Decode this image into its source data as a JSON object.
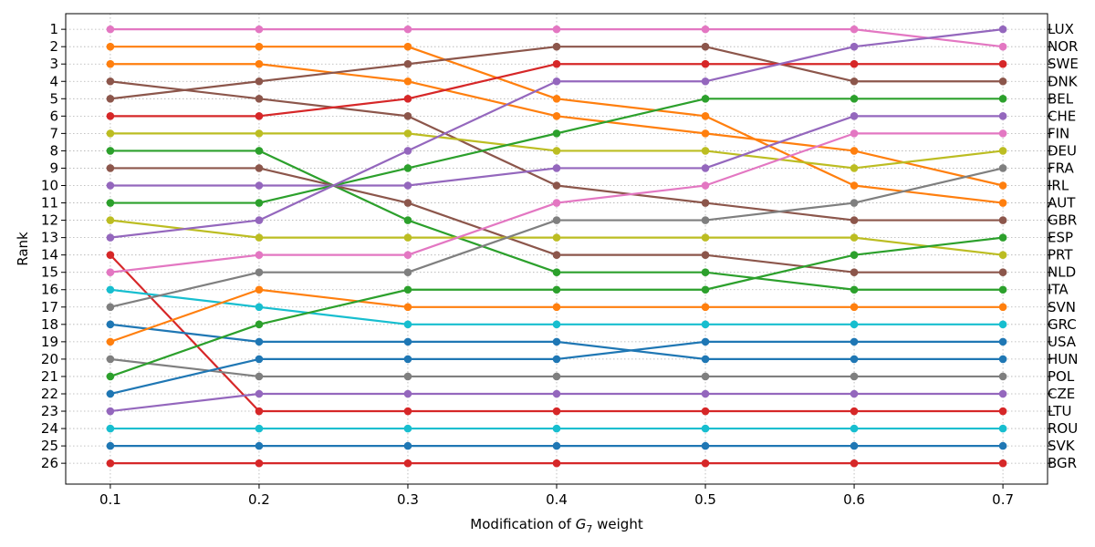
{
  "chart_data": {
    "type": "line",
    "title": "",
    "xlabel_prefix": "Modification of ",
    "xlabel_symbol": "G",
    "xlabel_subscript": "7",
    "xlabel_suffix": " weight",
    "ylabel": "Rank",
    "x": [
      0.1,
      0.2,
      0.3,
      0.4,
      0.5,
      0.6,
      0.7
    ],
    "x_tick_labels": [
      "0.1",
      "0.2",
      "0.3",
      "0.4",
      "0.5",
      "0.6",
      "0.7"
    ],
    "ylim": [
      27.2,
      0.1
    ],
    "xlim": [
      0.07,
      0.73
    ],
    "y_ticks": [
      1,
      2,
      3,
      4,
      5,
      6,
      7,
      8,
      9,
      10,
      11,
      12,
      13,
      14,
      15,
      16,
      17,
      18,
      19,
      20,
      21,
      22,
      23,
      24,
      25,
      26
    ],
    "grid": "dotted",
    "right_labels": [
      "LUX",
      "NOR",
      "SWE",
      "DNK",
      "BEL",
      "CHE",
      "FIN",
      "DEU",
      "FRA",
      "IRL",
      "AUT",
      "GBR",
      "ESP",
      "PRT",
      "NLD",
      "ITA",
      "SVN",
      "GRC",
      "USA",
      "HUN",
      "POL",
      "CZE",
      "LTU",
      "ROU",
      "SVK",
      "BGR"
    ],
    "series": [
      {
        "name": "pink-a",
        "color": "#e377c2",
        "values": [
          1,
          1,
          1,
          1,
          1,
          1,
          2
        ]
      },
      {
        "name": "orange-a",
        "color": "#ff7f0e",
        "values": [
          2,
          2,
          2,
          5,
          6,
          10,
          11
        ]
      },
      {
        "name": "orange-b",
        "color": "#ff7f0e",
        "values": [
          3,
          3,
          4,
          6,
          7,
          8,
          10
        ]
      },
      {
        "name": "brown-a",
        "color": "#8c564b",
        "values": [
          4,
          5,
          6,
          10,
          11,
          12,
          12
        ]
      },
      {
        "name": "brown-b",
        "color": "#8c564b",
        "values": [
          5,
          4,
          3,
          2,
          2,
          4,
          4
        ]
      },
      {
        "name": "red-a",
        "color": "#d62728",
        "values": [
          6,
          6,
          5,
          3,
          3,
          3,
          3
        ]
      },
      {
        "name": "olive-a",
        "color": "#bcbd22",
        "values": [
          7,
          7,
          7,
          8,
          8,
          9,
          8
        ]
      },
      {
        "name": "green-a",
        "color": "#2ca02c",
        "values": [
          8,
          8,
          12,
          15,
          15,
          16,
          16
        ]
      },
      {
        "name": "brown-c",
        "color": "#8c564b",
        "values": [
          9,
          9,
          11,
          14,
          14,
          15,
          15
        ]
      },
      {
        "name": "purple-a",
        "color": "#9467bd",
        "values": [
          10,
          10,
          10,
          9,
          9,
          6,
          6
        ]
      },
      {
        "name": "green-b",
        "color": "#2ca02c",
        "values": [
          11,
          11,
          9,
          7,
          5,
          5,
          5
        ]
      },
      {
        "name": "olive-b",
        "color": "#bcbd22",
        "values": [
          12,
          13,
          13,
          13,
          13,
          13,
          14
        ]
      },
      {
        "name": "purple-b",
        "color": "#9467bd",
        "values": [
          13,
          12,
          8,
          4,
          4,
          2,
          1
        ]
      },
      {
        "name": "red-b",
        "color": "#d62728",
        "values": [
          14,
          23,
          23,
          23,
          23,
          23,
          23
        ]
      },
      {
        "name": "pink-b",
        "color": "#e377c2",
        "values": [
          15,
          14,
          14,
          11,
          10,
          7,
          7
        ]
      },
      {
        "name": "cyan-a",
        "color": "#17becf",
        "values": [
          16,
          17,
          18,
          18,
          18,
          18,
          18
        ]
      },
      {
        "name": "gray-a",
        "color": "#7f7f7f",
        "values": [
          17,
          15,
          15,
          12,
          12,
          11,
          9
        ]
      },
      {
        "name": "blue-a",
        "color": "#1f77b4",
        "values": [
          18,
          19,
          19,
          19,
          20,
          20,
          20
        ]
      },
      {
        "name": "orange-c",
        "color": "#ff7f0e",
        "values": [
          19,
          16,
          17,
          17,
          17,
          17,
          17
        ]
      },
      {
        "name": "gray-b",
        "color": "#7f7f7f",
        "values": [
          20,
          21,
          21,
          21,
          21,
          21,
          21
        ]
      },
      {
        "name": "green-c",
        "color": "#2ca02c",
        "values": [
          21,
          18,
          16,
          16,
          16,
          14,
          13
        ]
      },
      {
        "name": "blue-b",
        "color": "#1f77b4",
        "values": [
          22,
          20,
          20,
          20,
          19,
          19,
          19
        ]
      },
      {
        "name": "purple-c",
        "color": "#9467bd",
        "values": [
          23,
          22,
          22,
          22,
          22,
          22,
          22
        ]
      },
      {
        "name": "cyan-b",
        "color": "#17becf",
        "values": [
          24,
          24,
          24,
          24,
          24,
          24,
          24
        ]
      },
      {
        "name": "blue-c",
        "color": "#1f77b4",
        "values": [
          25,
          25,
          25,
          25,
          25,
          25,
          25
        ]
      },
      {
        "name": "red-c",
        "color": "#d62728",
        "values": [
          26,
          26,
          26,
          26,
          26,
          26,
          26
        ]
      }
    ]
  }
}
